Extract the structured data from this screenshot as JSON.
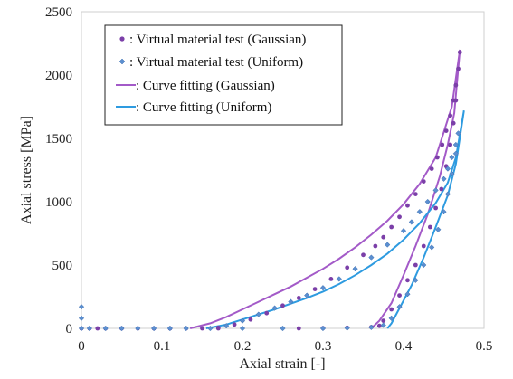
{
  "chart_data": {
    "type": "scatter",
    "xlabel": "Axial strain [-]",
    "ylabel": "Axial stress [MPa]",
    "xlim": [
      0,
      0.5
    ],
    "ylim": [
      0,
      2500
    ],
    "xticks": [
      "0",
      "0.1",
      "0.2",
      "0.3",
      "0.4",
      "0.5"
    ],
    "yticks": [
      "0",
      "500",
      "1000",
      "1500",
      "2000",
      "2500"
    ],
    "grid": false,
    "legend_position": "top-left",
    "series": [
      {
        "name": ": Virtual material test (Gaussian)",
        "kind": "markers",
        "marker": "circle",
        "color": "#7B3FA8",
        "points": [
          [
            0.0,
            0
          ],
          [
            0.01,
            0
          ],
          [
            0.02,
            0
          ],
          [
            0.03,
            0
          ],
          [
            0.05,
            0
          ],
          [
            0.07,
            0
          ],
          [
            0.09,
            0
          ],
          [
            0.11,
            0
          ],
          [
            0.13,
            0
          ],
          [
            0.15,
            0
          ],
          [
            0.17,
            0
          ],
          [
            0.17,
            5
          ],
          [
            0.19,
            30
          ],
          [
            0.21,
            70
          ],
          [
            0.23,
            120
          ],
          [
            0.25,
            180
          ],
          [
            0.27,
            240
          ],
          [
            0.29,
            310
          ],
          [
            0.31,
            390
          ],
          [
            0.33,
            480
          ],
          [
            0.35,
            580
          ],
          [
            0.365,
            650
          ],
          [
            0.375,
            720
          ],
          [
            0.385,
            800
          ],
          [
            0.395,
            880
          ],
          [
            0.405,
            970
          ],
          [
            0.415,
            1060
          ],
          [
            0.425,
            1160
          ],
          [
            0.435,
            1260
          ],
          [
            0.442,
            1350
          ],
          [
            0.448,
            1450
          ],
          [
            0.453,
            1560
          ],
          [
            0.458,
            1680
          ],
          [
            0.462,
            1800
          ],
          [
            0.465,
            1920
          ],
          [
            0.468,
            2050
          ],
          [
            0.47,
            2180
          ],
          [
            0.465,
            1800
          ],
          [
            0.462,
            1620
          ],
          [
            0.458,
            1450
          ],
          [
            0.453,
            1280
          ],
          [
            0.447,
            1100
          ],
          [
            0.44,
            950
          ],
          [
            0.433,
            800
          ],
          [
            0.425,
            650
          ],
          [
            0.415,
            500
          ],
          [
            0.405,
            380
          ],
          [
            0.395,
            260
          ],
          [
            0.385,
            150
          ],
          [
            0.375,
            60
          ],
          [
            0.37,
            20
          ],
          [
            0.36,
            10
          ],
          [
            0.33,
            5
          ],
          [
            0.3,
            2
          ],
          [
            0.27,
            0
          ]
        ]
      },
      {
        "name": ": Virtual material test (Uniform)",
        "kind": "markers",
        "marker": "diamond",
        "color": "#5B8FD0",
        "points": [
          [
            0.0,
            170
          ],
          [
            0.0,
            80
          ],
          [
            0.0,
            0
          ],
          [
            0.01,
            0
          ],
          [
            0.03,
            0
          ],
          [
            0.05,
            0
          ],
          [
            0.07,
            0
          ],
          [
            0.09,
            0
          ],
          [
            0.11,
            0
          ],
          [
            0.13,
            0
          ],
          [
            0.16,
            0
          ],
          [
            0.18,
            20
          ],
          [
            0.2,
            60
          ],
          [
            0.22,
            110
          ],
          [
            0.24,
            160
          ],
          [
            0.26,
            210
          ],
          [
            0.28,
            260
          ],
          [
            0.3,
            320
          ],
          [
            0.32,
            390
          ],
          [
            0.34,
            470
          ],
          [
            0.36,
            560
          ],
          [
            0.38,
            660
          ],
          [
            0.4,
            770
          ],
          [
            0.41,
            840
          ],
          [
            0.42,
            920
          ],
          [
            0.43,
            1000
          ],
          [
            0.44,
            1090
          ],
          [
            0.45,
            1180
          ],
          [
            0.455,
            1260
          ],
          [
            0.46,
            1350
          ],
          [
            0.465,
            1450
          ],
          [
            0.468,
            1540
          ],
          [
            0.465,
            1380
          ],
          [
            0.46,
            1220
          ],
          [
            0.455,
            1060
          ],
          [
            0.45,
            920
          ],
          [
            0.443,
            780
          ],
          [
            0.435,
            640
          ],
          [
            0.425,
            500
          ],
          [
            0.415,
            380
          ],
          [
            0.405,
            270
          ],
          [
            0.395,
            170
          ],
          [
            0.385,
            80
          ],
          [
            0.375,
            25
          ],
          [
            0.36,
            8
          ],
          [
            0.33,
            3
          ],
          [
            0.3,
            0
          ],
          [
            0.25,
            0
          ],
          [
            0.2,
            0
          ]
        ]
      },
      {
        "name": ": Curve fitting (Gaussian)",
        "kind": "line",
        "color": "#A35AC8",
        "points": [
          [
            0.135,
            0
          ],
          [
            0.16,
            40
          ],
          [
            0.18,
            90
          ],
          [
            0.2,
            150
          ],
          [
            0.22,
            210
          ],
          [
            0.24,
            270
          ],
          [
            0.26,
            330
          ],
          [
            0.28,
            400
          ],
          [
            0.3,
            470
          ],
          [
            0.32,
            550
          ],
          [
            0.34,
            640
          ],
          [
            0.36,
            740
          ],
          [
            0.38,
            850
          ],
          [
            0.4,
            980
          ],
          [
            0.42,
            1140
          ],
          [
            0.44,
            1350
          ],
          [
            0.46,
            1750
          ],
          [
            0.47,
            2200
          ],
          [
            0.463,
            1700
          ],
          [
            0.455,
            1450
          ],
          [
            0.445,
            1200
          ],
          [
            0.43,
            900
          ],
          [
            0.415,
            650
          ],
          [
            0.4,
            420
          ],
          [
            0.385,
            200
          ],
          [
            0.37,
            60
          ],
          [
            0.36,
            0
          ]
        ]
      },
      {
        "name": ": Curve fitting (Uniform)",
        "kind": "line",
        "color": "#2E9BE0",
        "points": [
          [
            0.155,
            0
          ],
          [
            0.18,
            30
          ],
          [
            0.2,
            70
          ],
          [
            0.22,
            110
          ],
          [
            0.24,
            150
          ],
          [
            0.26,
            195
          ],
          [
            0.28,
            240
          ],
          [
            0.3,
            290
          ],
          [
            0.32,
            350
          ],
          [
            0.34,
            420
          ],
          [
            0.36,
            500
          ],
          [
            0.38,
            590
          ],
          [
            0.4,
            700
          ],
          [
            0.42,
            830
          ],
          [
            0.44,
            990
          ],
          [
            0.455,
            1150
          ],
          [
            0.465,
            1350
          ],
          [
            0.475,
            1720
          ],
          [
            0.465,
            1300
          ],
          [
            0.455,
            1050
          ],
          [
            0.44,
            800
          ],
          [
            0.425,
            560
          ],
          [
            0.41,
            340
          ],
          [
            0.395,
            160
          ],
          [
            0.385,
            40
          ],
          [
            0.38,
            0
          ]
        ]
      }
    ]
  }
}
